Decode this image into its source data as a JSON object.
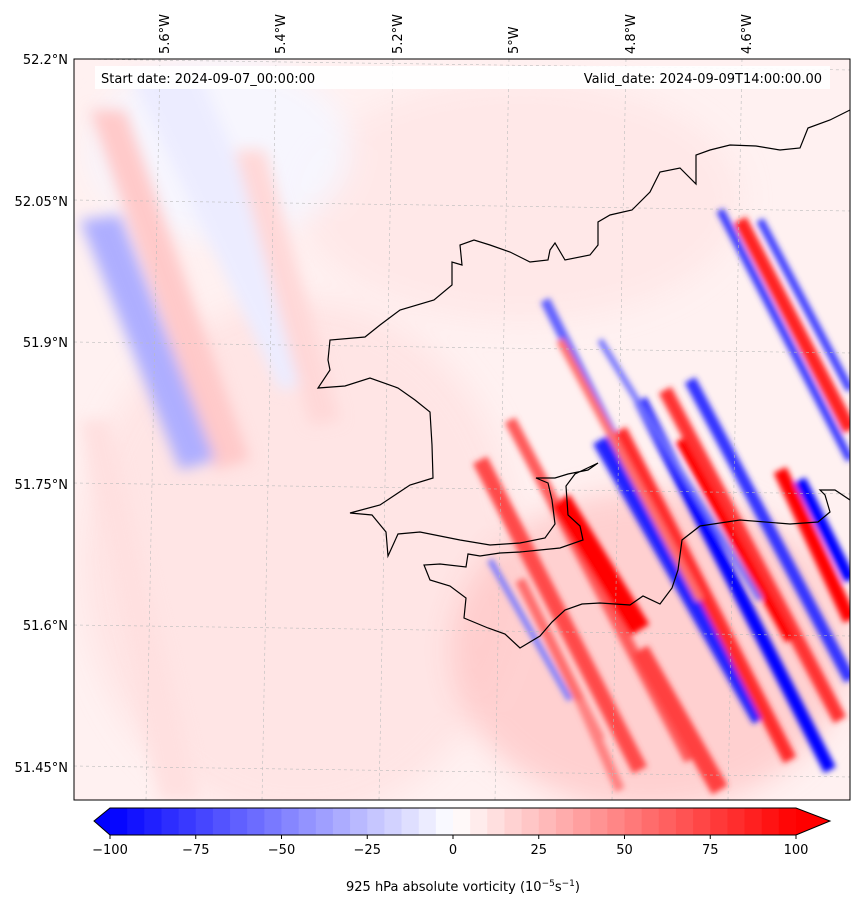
{
  "header": {
    "start_date": "Start date: 2024-09-07_00:00:00",
    "valid_date": "Valid_date: 2024-09-09T14:00:00.00"
  },
  "map": {
    "lon_labels": [
      "5.6°W",
      "5.4°W",
      "5.2°W",
      "5°W",
      "4.8°W",
      "4.6°W"
    ],
    "lat_labels": [
      "52.2°N",
      "52.05°N",
      "51.9°N",
      "51.75°N",
      "51.6°N",
      "51.45°N"
    ],
    "field": "925 hPa absolute vorticity",
    "colors": {
      "positive": "#ff0000",
      "negative": "#0000ff",
      "zero": "#ffffff",
      "coast": "#000000"
    }
  },
  "colorbar": {
    "ticks": [
      "−100",
      "−75",
      "−50",
      "−25",
      "0",
      "25",
      "50",
      "75",
      "100"
    ],
    "label_main": "925 hPa absolute vorticity (10",
    "label_exp1": "−5",
    "label_mid": "s",
    "label_exp2": "−1",
    "label_close": ")"
  }
}
